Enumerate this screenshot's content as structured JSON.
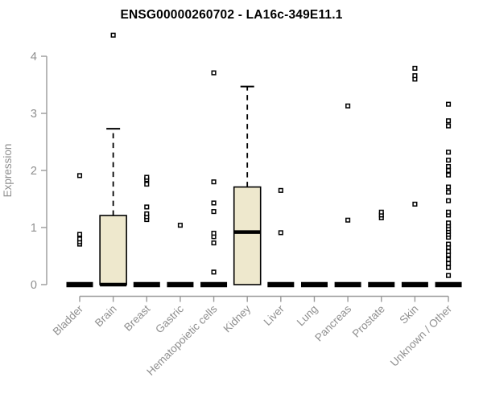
{
  "chart_data": {
    "type": "boxplot",
    "title": "ENSG00000260702 - LA16c-349E11.1",
    "xlabel": "",
    "ylabel": "Expression",
    "ylim": [
      0,
      4
    ],
    "yticks": [
      0,
      1,
      2,
      3,
      4
    ],
    "grid": false,
    "legend": "none",
    "categories": [
      "Bladder",
      "Brain",
      "Breast",
      "Gastric",
      "Hematopoietic cells",
      "Kidney",
      "Liver",
      "Lung",
      "Pancreas",
      "Prostate",
      "Skin",
      "Unknown / Other"
    ],
    "series": [
      {
        "category": "Bladder",
        "q1": 0,
        "median": 0,
        "q3": 0,
        "whisker_low": 0,
        "whisker_high": 0,
        "outliers": [
          0.71,
          0.75,
          0.8,
          0.88,
          1.91
        ]
      },
      {
        "category": "Brain",
        "q1": 0,
        "median": 0,
        "q3": 1.21,
        "whisker_low": 0,
        "whisker_high": 2.73,
        "outliers": [
          4.37
        ]
      },
      {
        "category": "Breast",
        "q1": 0,
        "median": 0,
        "q3": 0,
        "whisker_low": 0,
        "whisker_high": 0,
        "outliers": [
          1.14,
          1.19,
          1.24,
          1.36,
          1.76,
          1.84,
          1.88
        ]
      },
      {
        "category": "Gastric",
        "q1": 0,
        "median": 0,
        "q3": 0,
        "whisker_low": 0,
        "whisker_high": 0,
        "outliers": [
          1.04
        ]
      },
      {
        "category": "Hematopoietic cells",
        "q1": 0,
        "median": 0,
        "q3": 0,
        "whisker_low": 0,
        "whisker_high": 0,
        "outliers": [
          0.22,
          0.73,
          0.84,
          0.9,
          1.28,
          1.43,
          1.8,
          3.71
        ]
      },
      {
        "category": "Kidney",
        "q1": 0,
        "median": 0.92,
        "q3": 1.71,
        "whisker_low": 0,
        "whisker_high": 3.47,
        "outliers": []
      },
      {
        "category": "Liver",
        "q1": 0,
        "median": 0,
        "q3": 0,
        "whisker_low": 0,
        "whisker_high": 0,
        "outliers": [
          0.91,
          1.65
        ]
      },
      {
        "category": "Lung",
        "q1": 0,
        "median": 0,
        "q3": 0,
        "whisker_low": 0,
        "whisker_high": 0,
        "outliers": []
      },
      {
        "category": "Pancreas",
        "q1": 0,
        "median": 0,
        "q3": 0,
        "whisker_low": 0,
        "whisker_high": 0,
        "outliers": [
          1.13,
          3.13
        ]
      },
      {
        "category": "Prostate",
        "q1": 0,
        "median": 0,
        "q3": 0,
        "whisker_low": 0,
        "whisker_high": 0,
        "outliers": [
          1.17,
          1.22,
          1.27
        ]
      },
      {
        "category": "Skin",
        "q1": 0,
        "median": 0,
        "q3": 0,
        "whisker_low": 0,
        "whisker_high": 0,
        "outliers": [
          1.41,
          3.6,
          3.66,
          3.79
        ]
      },
      {
        "category": "Unknown / Other",
        "q1": 0,
        "median": 0,
        "q3": 0,
        "whisker_low": 0,
        "whisker_high": 0,
        "outliers": [
          0.16,
          0.3,
          0.37,
          0.44,
          0.52,
          0.58,
          0.65,
          0.71,
          0.83,
          0.88,
          0.93,
          0.98,
          1.03,
          1.08,
          1.22,
          1.27,
          1.47,
          1.62,
          1.71,
          1.92,
          2.0,
          2.07,
          2.18,
          2.32,
          2.78,
          2.87,
          3.16
        ]
      }
    ],
    "colors": {
      "box_fill": "#EEE8CD",
      "box_stroke": "#000000",
      "median_color": "#000000",
      "outlier_stroke": "#000000",
      "axis_color": "#9a9a9a",
      "tick_label_color": "#8f8f8f",
      "title_color": "#000000"
    }
  }
}
